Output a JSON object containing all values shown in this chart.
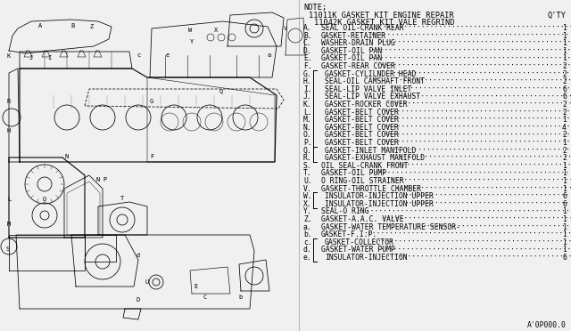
{
  "bg_color": "#f0f0f0",
  "parts_bg": "#f0f0f0",
  "title_note": "NOTE;",
  "title_line1": "11011K GASKET KIT ENGINE REPAIR",
  "title_qty": "Q'TY",
  "title_line2": "11042K GASKET KIT VALE REGRIND",
  "parts": [
    {
      "label": "A",
      "name": "SEAL OIL-CRANK REAR",
      "qty": "1",
      "group": 0
    },
    {
      "label": "B",
      "name": "GASKET-RETAINER",
      "qty": "1",
      "group": 0
    },
    {
      "label": "C",
      "name": "WASHER-DRAIN PLUG",
      "qty": "1",
      "group": 0
    },
    {
      "label": "D",
      "name": "GASKET-OIL PAN",
      "qty": "1",
      "group": 0
    },
    {
      "label": "E",
      "name": "GASKET-OIL PAN",
      "qty": "1",
      "group": 0
    },
    {
      "label": "F",
      "name": "GASKET-REAR COVER",
      "qty": "2",
      "group": 0
    },
    {
      "label": "G",
      "name": "GASKET-CYLILNDER HEAD",
      "qty": "2",
      "group": 1
    },
    {
      "label": "H",
      "name": "SEAL-OIL CAMSHAFT FRONT",
      "qty": "2",
      "group": 1
    },
    {
      "label": "I",
      "name": "SEAL-LIP VALVE INLET",
      "qty": "6",
      "group": 1
    },
    {
      "label": "J",
      "name": "SEAL-LIP VALVE EXHAUST",
      "qty": "6",
      "group": 1
    },
    {
      "label": "K",
      "name": "GASKET-ROCKER COVER",
      "qty": "2",
      "group": 1
    },
    {
      "label": "L",
      "name": "GASKET-BELT COVER",
      "qty": "2",
      "group": 1
    },
    {
      "label": "M",
      "name": "GASKET-BELT COVER",
      "qty": "1",
      "group": 1
    },
    {
      "label": "N",
      "name": "GASKET-BELT COVER",
      "qty": "4",
      "group": 1
    },
    {
      "label": "O",
      "name": "GASKET-BELT COVER",
      "qty": "2",
      "group": 1
    },
    {
      "label": "P",
      "name": "GASKET-BELT COVER",
      "qty": "1",
      "group": 1
    },
    {
      "label": "Q",
      "name": "GASKET-INLET MANIFOLD",
      "qty": "2",
      "group": 2
    },
    {
      "label": "R",
      "name": "GASKET-EXHAUST MANIFOLD",
      "qty": "2",
      "group": 2
    },
    {
      "label": "S",
      "name": "OIL SEAL-CRANK FRONT",
      "qty": "1",
      "group": 0
    },
    {
      "label": "T",
      "name": "GASKET-OIL PUMP",
      "qty": "1",
      "group": 0
    },
    {
      "label": "U",
      "name": "O RING-OIL STRAINER",
      "qty": "1",
      "group": 0
    },
    {
      "label": "V",
      "name": "GASKET-THROTTLE CHAMBER",
      "qty": "1",
      "group": 0
    },
    {
      "label": "W",
      "name": "INSULATOR-INJECTION UPPER",
      "qty": "6",
      "group": 3
    },
    {
      "label": "X",
      "name": "INSULATOR-INJECTION UPPER",
      "qty": "6",
      "group": 3
    },
    {
      "label": "Y",
      "name": "SEAL-O RING",
      "qty": "1",
      "group": 0
    },
    {
      "label": "Z",
      "name": "GASKET-A.A.C. VALVE",
      "qty": "1",
      "group": 0
    },
    {
      "label": "a",
      "name": "GASKET-WATER TEMPERATURE SENSOR-",
      "qty": "1",
      "group": 0
    },
    {
      "label": "b",
      "name": "GASKET-F.I.P.",
      "qty": "1",
      "group": 0
    },
    {
      "label": "c",
      "name": "GASKET-COLLECTOR",
      "qty": "1",
      "group": 4
    },
    {
      "label": "d",
      "name": "GASKET-WATER PUMP",
      "qty": "1",
      "group": 0
    },
    {
      "label": "e",
      "name": "INSULATOR-INJECTION",
      "qty": "6",
      "group": 4
    }
  ],
  "footer": "A'0P000.0",
  "font_size_title": 6.2,
  "font_size_parts": 5.8,
  "text_color": "#000000"
}
